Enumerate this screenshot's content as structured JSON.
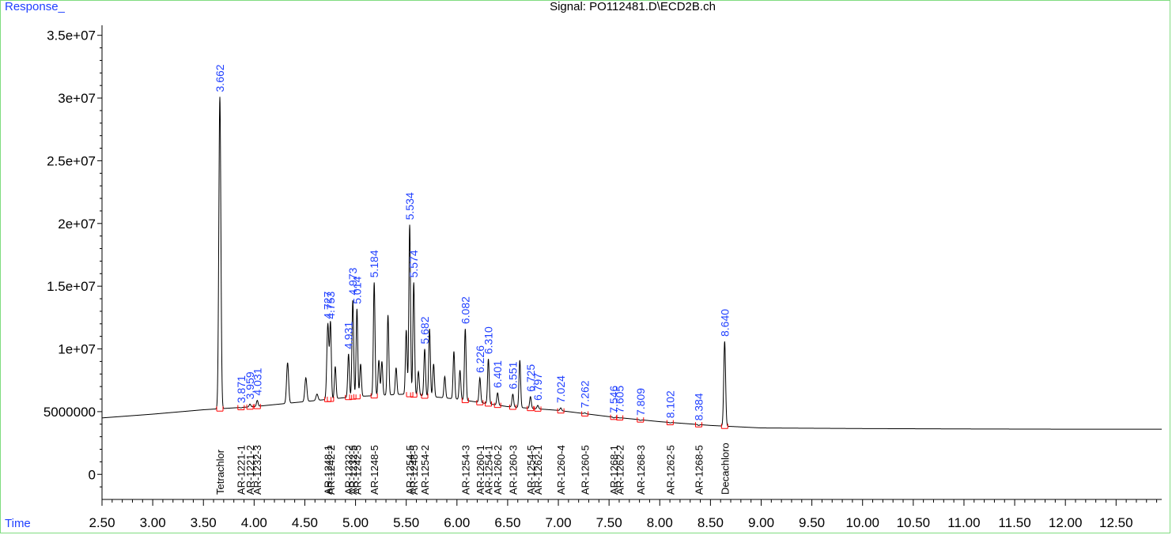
{
  "header": {
    "y_axis_tag": "Response_",
    "x_axis_tag": "Time",
    "signal": "Signal: PO112481.D\\ECD2B.ch"
  },
  "colors": {
    "trace": "#000000",
    "peak_label": "#1f3fff",
    "baseline_marker": "#ff0000",
    "frame": "#7fdc7f"
  },
  "chart_data": {
    "type": "line",
    "title": "Signal: PO112481.D\\ECD2B.ch",
    "xlabel": "Time",
    "ylabel": "Response_",
    "xlim": [
      2.5,
      12.95
    ],
    "ylim": [
      -2000000,
      35800000
    ],
    "grid": false,
    "y_ticks": [
      {
        "value": 0,
        "label": "0"
      },
      {
        "value": 5000000,
        "label": "5000000"
      },
      {
        "value": 10000000,
        "label": "1e+07"
      },
      {
        "value": 15000000,
        "label": "1.5e+07"
      },
      {
        "value": 20000000,
        "label": "2e+07"
      },
      {
        "value": 25000000,
        "label": "2.5e+07"
      },
      {
        "value": 30000000,
        "label": "3e+07"
      },
      {
        "value": 35000000,
        "label": "3.5e+07"
      }
    ],
    "x_ticks": [
      {
        "value": 2.5,
        "label": "2.50"
      },
      {
        "value": 3.0,
        "label": "3.00"
      },
      {
        "value": 3.5,
        "label": "3.50"
      },
      {
        "value": 4.0,
        "label": "4.00"
      },
      {
        "value": 4.5,
        "label": "4.50"
      },
      {
        "value": 5.0,
        "label": "5.00"
      },
      {
        "value": 5.5,
        "label": "5.50"
      },
      {
        "value": 6.0,
        "label": "6.00"
      },
      {
        "value": 6.5,
        "label": "6.50"
      },
      {
        "value": 7.0,
        "label": "7.00"
      },
      {
        "value": 7.5,
        "label": "7.50"
      },
      {
        "value": 8.0,
        "label": "8.00"
      },
      {
        "value": 8.5,
        "label": "8.50"
      },
      {
        "value": 9.0,
        "label": "9.00"
      },
      {
        "value": 9.5,
        "label": "9.50"
      },
      {
        "value": 10.0,
        "label": "10.00"
      },
      {
        "value": 10.5,
        "label": "10.50"
      },
      {
        "value": 11.0,
        "label": "11.00"
      },
      {
        "value": 11.5,
        "label": "11.50"
      },
      {
        "value": 12.0,
        "label": "12.00"
      },
      {
        "value": 12.5,
        "label": "12.50"
      }
    ],
    "baseline": [
      {
        "x": 2.5,
        "y": 4500000
      },
      {
        "x": 3.0,
        "y": 4800000
      },
      {
        "x": 3.5,
        "y": 5150000
      },
      {
        "x": 4.0,
        "y": 5400000
      },
      {
        "x": 4.5,
        "y": 5800000
      },
      {
        "x": 5.0,
        "y": 6200000
      },
      {
        "x": 5.5,
        "y": 6400000
      },
      {
        "x": 6.0,
        "y": 6000000
      },
      {
        "x": 6.5,
        "y": 5400000
      },
      {
        "x": 7.0,
        "y": 5100000
      },
      {
        "x": 7.5,
        "y": 4600000
      },
      {
        "x": 8.0,
        "y": 4200000
      },
      {
        "x": 8.5,
        "y": 3900000
      },
      {
        "x": 9.0,
        "y": 3700000
      },
      {
        "x": 10.0,
        "y": 3650000
      },
      {
        "x": 11.0,
        "y": 3620000
      },
      {
        "x": 12.0,
        "y": 3600000
      },
      {
        "x": 12.95,
        "y": 3600000
      }
    ],
    "peaks": [
      {
        "x": 3.662,
        "height": 30100000,
        "width": 0.01,
        "label": "3.662"
      },
      {
        "x": 3.871,
        "height": 5300000,
        "width": 0.008,
        "label": "3.871"
      },
      {
        "x": 3.959,
        "height": 5600000,
        "width": 0.008,
        "label": "3.959"
      },
      {
        "x": 4.031,
        "height": 5900000,
        "width": 0.008,
        "label": "4.031"
      },
      {
        "x": 4.33,
        "height": 8900000,
        "width": 0.01,
        "label": ""
      },
      {
        "x": 4.51,
        "height": 7700000,
        "width": 0.01,
        "label": ""
      },
      {
        "x": 4.62,
        "height": 6400000,
        "width": 0.01,
        "label": ""
      },
      {
        "x": 4.727,
        "height": 12000000,
        "width": 0.01,
        "label": "4.727"
      },
      {
        "x": 4.753,
        "height": 12000000,
        "width": 0.008,
        "label": "4.753"
      },
      {
        "x": 4.8,
        "height": 8600000,
        "width": 0.008,
        "label": ""
      },
      {
        "x": 4.931,
        "height": 9600000,
        "width": 0.008,
        "label": "4.931"
      },
      {
        "x": 4.973,
        "height": 13900000,
        "width": 0.008,
        "label": "4.973"
      },
      {
        "x": 5.014,
        "height": 13200000,
        "width": 0.008,
        "label": "5.014"
      },
      {
        "x": 5.05,
        "height": 8800000,
        "width": 0.008,
        "label": ""
      },
      {
        "x": 5.184,
        "height": 15300000,
        "width": 0.008,
        "label": "5.184"
      },
      {
        "x": 5.23,
        "height": 9100000,
        "width": 0.008,
        "label": ""
      },
      {
        "x": 5.26,
        "height": 9000000,
        "width": 0.008,
        "label": ""
      },
      {
        "x": 5.32,
        "height": 12700000,
        "width": 0.008,
        "label": ""
      },
      {
        "x": 5.4,
        "height": 8500000,
        "width": 0.008,
        "label": ""
      },
      {
        "x": 5.5,
        "height": 11500000,
        "width": 0.008,
        "label": ""
      },
      {
        "x": 5.534,
        "height": 19900000,
        "width": 0.008,
        "label": "5.534"
      },
      {
        "x": 5.574,
        "height": 15300000,
        "width": 0.008,
        "label": "5.574"
      },
      {
        "x": 5.62,
        "height": 8200000,
        "width": 0.008,
        "label": ""
      },
      {
        "x": 5.682,
        "height": 10000000,
        "width": 0.008,
        "label": "5.682"
      },
      {
        "x": 5.73,
        "height": 11600000,
        "width": 0.008,
        "label": ""
      },
      {
        "x": 5.77,
        "height": 8800000,
        "width": 0.008,
        "label": ""
      },
      {
        "x": 5.88,
        "height": 7800000,
        "width": 0.008,
        "label": ""
      },
      {
        "x": 5.97,
        "height": 9800000,
        "width": 0.008,
        "label": ""
      },
      {
        "x": 6.03,
        "height": 8300000,
        "width": 0.008,
        "label": ""
      },
      {
        "x": 6.082,
        "height": 11600000,
        "width": 0.008,
        "label": "6.082"
      },
      {
        "x": 6.226,
        "height": 7700000,
        "width": 0.008,
        "label": "6.226"
      },
      {
        "x": 6.31,
        "height": 9200000,
        "width": 0.008,
        "label": "6.310"
      },
      {
        "x": 6.401,
        "height": 6500000,
        "width": 0.008,
        "label": "6.401"
      },
      {
        "x": 6.551,
        "height": 6400000,
        "width": 0.008,
        "label": "6.551"
      },
      {
        "x": 6.62,
        "height": 9100000,
        "width": 0.008,
        "label": ""
      },
      {
        "x": 6.725,
        "height": 6200000,
        "width": 0.008,
        "label": "6.725"
      },
      {
        "x": 6.797,
        "height": 5500000,
        "width": 0.008,
        "label": "6.797"
      },
      {
        "x": 7.024,
        "height": 5300000,
        "width": 0.008,
        "label": "7.024"
      },
      {
        "x": 7.262,
        "height": 4900000,
        "width": 0.008,
        "label": "7.262"
      },
      {
        "x": 7.546,
        "height": 4500000,
        "width": 0.008,
        "label": "7.546"
      },
      {
        "x": 7.605,
        "height": 4500000,
        "width": 0.008,
        "label": "7.605"
      },
      {
        "x": 7.809,
        "height": 4300000,
        "width": 0.008,
        "label": "7.809"
      },
      {
        "x": 8.102,
        "height": 4100000,
        "width": 0.008,
        "label": "8.102"
      },
      {
        "x": 8.384,
        "height": 3900000,
        "width": 0.008,
        "label": "8.384"
      },
      {
        "x": 8.64,
        "height": 10600000,
        "width": 0.009,
        "label": "8.640"
      }
    ],
    "compound_labels": [
      {
        "x": 3.662,
        "text": "Tetrachlor"
      },
      {
        "x": 3.87,
        "text": "AR-1221-1"
      },
      {
        "x": 3.96,
        "text": "AR-1221-2"
      },
      {
        "x": 4.03,
        "text": "AR-1232-3"
      },
      {
        "x": 4.727,
        "text": "AR-1248-1"
      },
      {
        "x": 4.753,
        "text": "AR-1242-2"
      },
      {
        "x": 4.931,
        "text": "AR-1232-2"
      },
      {
        "x": 4.973,
        "text": "AR-1232-5"
      },
      {
        "x": 5.014,
        "text": "AR-1242-5"
      },
      {
        "x": 5.184,
        "text": "AR-1248-5"
      },
      {
        "x": 5.534,
        "text": "AR-1254-5"
      },
      {
        "x": 5.574,
        "text": "AR-1248-5"
      },
      {
        "x": 5.682,
        "text": "AR-1254-2"
      },
      {
        "x": 6.082,
        "text": "AR-1254-3"
      },
      {
        "x": 6.226,
        "text": "AR-1260-1"
      },
      {
        "x": 6.31,
        "text": "AR-1254-1"
      },
      {
        "x": 6.401,
        "text": "AR-1260-2"
      },
      {
        "x": 6.551,
        "text": "AR-1260-3"
      },
      {
        "x": 6.725,
        "text": "AR-1254-5"
      },
      {
        "x": 6.797,
        "text": "AR-1262-1"
      },
      {
        "x": 7.024,
        "text": "AR-1260-4"
      },
      {
        "x": 7.262,
        "text": "AR-1260-5"
      },
      {
        "x": 7.546,
        "text": "AR-1268-1"
      },
      {
        "x": 7.605,
        "text": "AR-1262-2"
      },
      {
        "x": 7.809,
        "text": "AR-1268-3"
      },
      {
        "x": 8.102,
        "text": "AR-1262-5"
      },
      {
        "x": 8.384,
        "text": "AR-1268-5"
      },
      {
        "x": 8.64,
        "text": "Decachloro"
      }
    ]
  }
}
